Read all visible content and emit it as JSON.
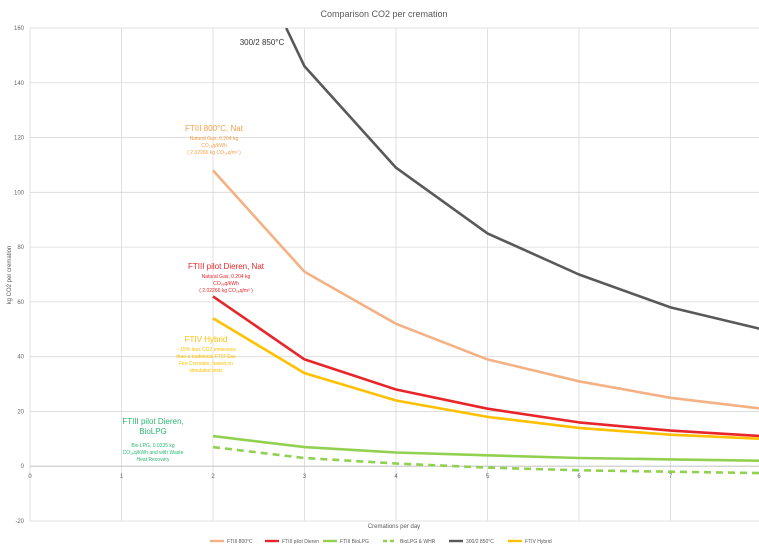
{
  "chart_data": {
    "type": "line",
    "title": "Comparison CO2 per cremation",
    "xlabel": "Cremations per day",
    "ylabel": "kg CO2 per cremation",
    "xlim": [
      0,
      8
    ],
    "ylim": [
      -20,
      160
    ],
    "xticks": [
      0,
      1,
      2,
      3,
      4,
      5,
      6,
      7
    ],
    "yticks": [
      -20,
      0,
      20,
      40,
      60,
      80,
      100,
      120,
      140,
      160
    ],
    "y_tick_labels": [
      "-20",
      "0",
      "20",
      "40",
      "60",
      "80",
      "100",
      "120",
      "140",
      "160"
    ],
    "grid": true,
    "legend_position": "bottom",
    "series": [
      {
        "name": "FTIII 800°C",
        "color": "#f4b183",
        "dash": false,
        "x": [
          2,
          3,
          4,
          5,
          6,
          7,
          8
        ],
        "y": [
          108,
          71,
          52,
          39,
          31,
          25,
          21
        ]
      },
      {
        "name": "FTIII pilot Dieren",
        "color": "#e8262a",
        "dash": false,
        "x": [
          2,
          3,
          4,
          5,
          6,
          7,
          8
        ],
        "y": [
          62,
          39,
          28,
          21,
          16,
          13,
          11
        ]
      },
      {
        "name": "FTIII BioLPG",
        "color": "#92d050",
        "dash": false,
        "x": [
          2,
          3,
          4,
          5,
          6,
          7,
          8
        ],
        "y": [
          11,
          7,
          5,
          4,
          3,
          2.5,
          2
        ]
      },
      {
        "name": "BioLPG & WHR",
        "color": "#92d050",
        "dash": true,
        "x": [
          2,
          3,
          4,
          5,
          6,
          7,
          8
        ],
        "y": [
          7,
          3,
          1,
          -0.5,
          -1.5,
          -2,
          -2.5
        ]
      },
      {
        "name": "300/2 850°C",
        "color": "#595959",
        "dash": false,
        "x": [
          2.8,
          3,
          4,
          5,
          6,
          7,
          8
        ],
        "y": [
          160,
          146,
          109,
          85,
          70,
          58,
          50
        ]
      },
      {
        "name": "FTIV Hybrid",
        "color": "#ffc000",
        "dash": false,
        "x": [
          2,
          3,
          4,
          5,
          6,
          7,
          8
        ],
        "y": [
          54,
          34,
          24,
          18,
          14,
          11.5,
          10
        ]
      }
    ],
    "annotations": [
      {
        "id": "ftiii800",
        "color": "#f5a04a",
        "lines": [
          "FTIII 800°C, Nat",
          "Natural Gas, 0.204 kg",
          "CO₂ₑq/kWh",
          "( 2.02266 kg CO₂ₑq/m³ )"
        ]
      },
      {
        "id": "dieren",
        "color": "#e8262a",
        "lines": [
          "FTIII pilot Dieren, Nat",
          "Natural Gas, 0.204 kg",
          "CO₂ₑq/kWh",
          "( 2.02266 kg CO₂ₑq/m³ )"
        ]
      },
      {
        "id": "hybrid",
        "color": "#ffc000",
        "lines": [
          "FTIV Hybrid",
          "~ 15% less CO2 emissions",
          "than a traditional FTIII Gas",
          "Fire Cremator, based on",
          "simulated tests"
        ]
      },
      {
        "id": "biolpg",
        "color": "#2bb673",
        "lines": [
          "FTIII pilot Dieren,",
          "BioLPG",
          "Bio LPG, 0.0335 kg",
          "CO₂ₑq/kWh and with Waste",
          "Heat Recovery"
        ]
      },
      {
        "id": "300",
        "color": "#333333",
        "lines": [
          "300/2 850°C"
        ]
      }
    ]
  }
}
